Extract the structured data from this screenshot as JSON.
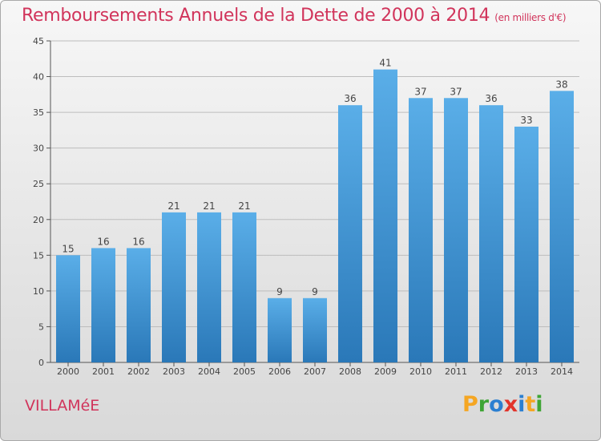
{
  "header": {
    "title": "Remboursements Annuels de la Dette de 2000 à 2014",
    "subtitle": "(en milliers d'€)"
  },
  "footer": {
    "commune": "VILLAMéE",
    "logo_text": "Proxiti",
    "logo_letters": [
      {
        "char": "P",
        "color": "#f5a623"
      },
      {
        "char": "r",
        "color": "#3fa535"
      },
      {
        "char": "o",
        "color": "#2b7fd1"
      },
      {
        "char": "x",
        "color": "#e2342b"
      },
      {
        "char": "i",
        "color": "#2b7fd1"
      },
      {
        "char": "t",
        "color": "#f5a623"
      },
      {
        "char": "i",
        "color": "#3fa535"
      }
    ]
  },
  "colors": {
    "title": "#d1345b",
    "bar_top": "#5aaee8",
    "bar_bottom": "#2a78b8",
    "grid": "#bdbdbd"
  },
  "chart_data": {
    "type": "bar",
    "categories": [
      "2000",
      "2001",
      "2002",
      "2003",
      "2004",
      "2005",
      "2006",
      "2007",
      "2008",
      "2009",
      "2010",
      "2011",
      "2012",
      "2013",
      "2014"
    ],
    "values": [
      15,
      16,
      16,
      21,
      21,
      21,
      9,
      9,
      36,
      41,
      37,
      37,
      36,
      33,
      38
    ],
    "ylim": [
      0,
      45
    ],
    "yticks": [
      0,
      5,
      10,
      15,
      20,
      25,
      30,
      35,
      40,
      45
    ],
    "grid": true
  }
}
